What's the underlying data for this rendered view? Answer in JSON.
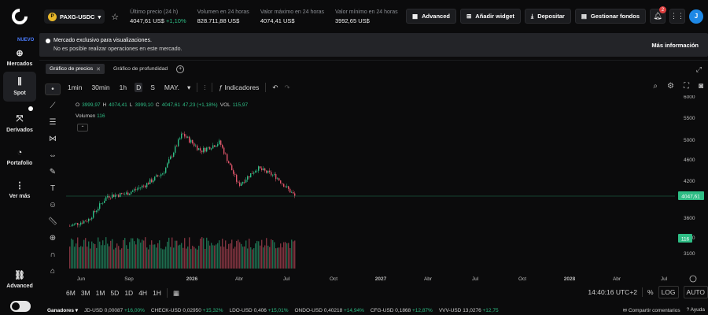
{
  "header": {
    "pair": "PAXG-USDC",
    "coin_glyph": "P",
    "stats": [
      {
        "label": "Último precio (24 h)",
        "value": "4047,61 US$",
        "change": "+1,10%"
      },
      {
        "label": "Volumen en 24 horas",
        "value": "828.711,88 US$"
      },
      {
        "label": "Valor máximo en 24 horas",
        "value": "4074,41 US$"
      },
      {
        "label": "Valor mínimo en 24 horas",
        "value": "3992,65 US$"
      }
    ],
    "actions": [
      "Advanced",
      "Añadir widget",
      "Depositar",
      "Gestionar fondos"
    ],
    "notifications": "2",
    "avatar": "J"
  },
  "sidebar": {
    "badge": "NUEVO",
    "items": [
      {
        "label": "Mercados",
        "icon": "globe-icon"
      },
      {
        "label": "Spot",
        "icon": "candles-icon"
      },
      {
        "label": "Derivados",
        "icon": "derivatives-icon"
      },
      {
        "label": "Portafolio",
        "icon": "pie-icon"
      },
      {
        "label": "Ver más",
        "icon": "more-icon"
      },
      {
        "label": "Advanced",
        "icon": "advanced-icon"
      }
    ]
  },
  "banner": {
    "line1": "Mercado exclusivo para visualizaciones.",
    "line2": "No es posible realizar operaciones en este mercado.",
    "more": "Más información"
  },
  "tabs": [
    "Gráfico de precios",
    "Gráfico de profundidad"
  ],
  "toolbar": {
    "timeframes": [
      "1min",
      "30min",
      "1h",
      "D",
      "S",
      "MAY."
    ],
    "active_timeframe": "D",
    "indicators": "Indicadores"
  },
  "legend": {
    "o": "O",
    "o_val": "3999,97",
    "h": "H",
    "h_val": "4074,41",
    "l": "L",
    "l_val": "3999,10",
    "c": "C",
    "c_val": "4047,61",
    "change": "47,23 (+1,18%)",
    "vol": "VOL",
    "vol_val": "115,97",
    "volume_label": "Volumen",
    "volume_val": "116"
  },
  "chart_data": {
    "type": "candlestick",
    "y_ticks": [
      "6000",
      "5500",
      "5000",
      "4600",
      "4200",
      "3900",
      "3600",
      "3300",
      "3100"
    ],
    "x_ticks": [
      "Jun",
      "Sep",
      "2026",
      "Abr",
      "Jul",
      "Oct",
      "2027",
      "Abr",
      "Jul",
      "Oct",
      "2028",
      "Abr",
      "Jul"
    ],
    "last_price": "4047,61",
    "last_volume": "116",
    "price_path": [
      {
        "t": "Jun",
        "p": 3350
      },
      {
        "t": "Sep",
        "p": 3500
      },
      {
        "t": "Oct",
        "p": 4050
      },
      {
        "t": "Nov",
        "p": 4100
      },
      {
        "t": "Dic",
        "p": 4300
      },
      {
        "t": "2026",
        "p": 4600
      },
      {
        "t": "Ene",
        "p": 5500
      },
      {
        "t": "Feb",
        "p": 5100
      },
      {
        "t": "Mar",
        "p": 5300
      },
      {
        "t": "Abr",
        "p": 4300
      },
      {
        "t": "May",
        "p": 4700
      },
      {
        "t": "Jun",
        "p": 4500
      },
      {
        "t": "Jul",
        "p": 4047
      }
    ]
  },
  "bottombar": {
    "ranges": [
      "6M",
      "3M",
      "1M",
      "5D",
      "1D",
      "4H",
      "1H"
    ],
    "time": "14:40:16 UTC+2",
    "percent": "%",
    "log": "LOG",
    "auto": "AUTO"
  },
  "ticker": {
    "title": "Ganadores",
    "items": [
      {
        "sym": "JD-USD",
        "price": "0,00087",
        "chg": "+16,00%"
      },
      {
        "sym": "CHECK-USD",
        "price": "0,02950",
        "chg": "+15,32%"
      },
      {
        "sym": "LDO-USD",
        "price": "0,406",
        "chg": "+15,01%"
      },
      {
        "sym": "ONDO-USD",
        "price": "0,40218",
        "chg": "+14,94%"
      },
      {
        "sym": "CFG-USD",
        "price": "0,1868",
        "chg": "+12,87%"
      },
      {
        "sym": "VVV-USD",
        "price": "13,0276",
        "chg": "+12,75"
      }
    ],
    "comments": "Compartir comentarios",
    "help": "Ayuda"
  },
  "colors": {
    "up": "#2ebd85",
    "down": "#e0556a",
    "accent": "#1e88e5"
  }
}
